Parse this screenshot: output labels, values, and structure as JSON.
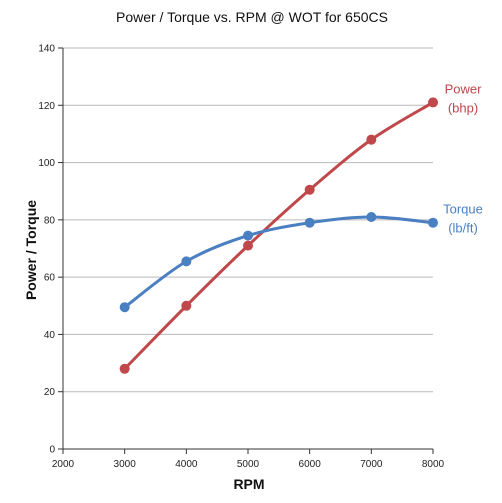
{
  "chart_data": {
    "type": "line",
    "title": "Power / Torque vs. RPM @ WOT for 650CS",
    "xlabel": "RPM",
    "ylabel": "Power / Torque",
    "xlim": [
      2000,
      8000
    ],
    "ylim": [
      0,
      140
    ],
    "x_ticks": [
      "2000",
      "3000",
      "4000",
      "5000",
      "6000",
      "7000",
      "8000"
    ],
    "y_ticks": [
      "0",
      "20",
      "40",
      "60",
      "80",
      "100",
      "120",
      "140"
    ],
    "grid": "horizontal",
    "series": [
      {
        "name": "Power",
        "unit_label": "(bhp)",
        "color": "#c0474a",
        "x": [
          3000,
          4000,
          5000,
          6000,
          7000,
          8000
        ],
        "y": [
          28,
          50,
          71,
          90.5,
          108,
          121
        ]
      },
      {
        "name": "Torque",
        "unit_label": "(lb/ft)",
        "color": "#4a7fc1",
        "x": [
          3000,
          4000,
          5000,
          6000,
          7000,
          8000
        ],
        "y": [
          49.5,
          65.5,
          74.5,
          79,
          81,
          79
        ]
      }
    ]
  }
}
